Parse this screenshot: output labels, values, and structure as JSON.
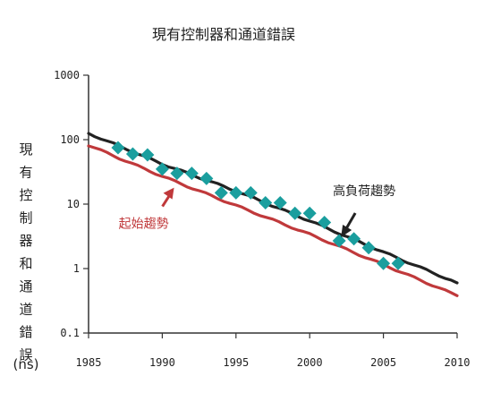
{
  "chart_data": {
    "type": "scatter",
    "title": "現有控制器和通道錯誤",
    "ylabel": "現有控制器和通道錯誤",
    "yunit": "(ns)",
    "xlim": [
      1985,
      2010
    ],
    "ylim": [
      0.1,
      1000
    ],
    "y_scale": "log",
    "x_ticks": [
      "1985",
      "1990",
      "1995",
      "2000",
      "2005",
      "2010"
    ],
    "y_ticks": [
      "0.1",
      "1",
      "10",
      "100",
      "1000"
    ],
    "grid": false,
    "series": [
      {
        "kind": "points",
        "color": "#1a9e9e",
        "x": [
          1987,
          1988,
          1989,
          1990,
          1991,
          1992,
          1993,
          1994,
          1995,
          1996,
          1997,
          1998,
          1999,
          2000,
          2001,
          2002,
          2003,
          2004,
          2005,
          2006
        ],
        "y": [
          75,
          60,
          58,
          35,
          30,
          30,
          25,
          15,
          15,
          15,
          10.5,
          10.5,
          7.2,
          7.2,
          5.2,
          2.7,
          2.9,
          2.1,
          1.2,
          1.2
        ]
      },
      {
        "kind": "line",
        "name": "高負荷趨勢",
        "color": "#222222",
        "x": [
          1985,
          1990,
          1995,
          2000,
          2005,
          2010
        ],
        "y": [
          125,
          42,
          16,
          5.5,
          1.8,
          0.6
        ]
      },
      {
        "kind": "line",
        "name": "起始趨勢",
        "color": "#c0393b",
        "x": [
          1985,
          1990,
          1995,
          2000,
          2005,
          2010
        ],
        "y": [
          82,
          27,
          9.5,
          3.4,
          1.15,
          0.38
        ]
      }
    ],
    "annotations": [
      {
        "text": "高負荷趨勢",
        "color": "#222222",
        "points_to": [
          2002,
          2.7
        ]
      },
      {
        "text": "起始趨勢",
        "color": "#c0393b",
        "points_to": [
          1990.8,
          18
        ]
      }
    ]
  }
}
